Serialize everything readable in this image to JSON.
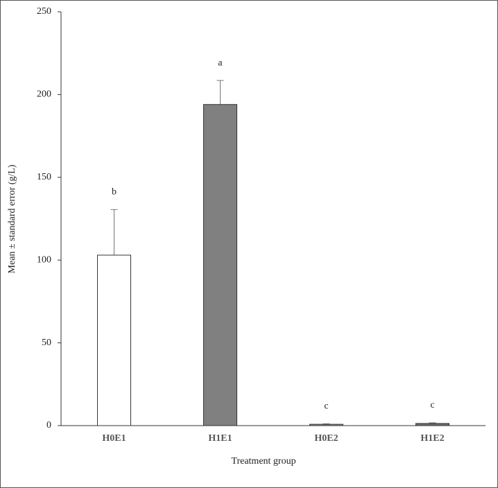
{
  "chart_data": {
    "type": "bar",
    "xlabel": "Treatment group",
    "ylabel": "Mean ± standard error (g/L)",
    "categories": [
      "H0E1",
      "H1E1",
      "H0E2",
      "H1E2"
    ],
    "values": [
      103,
      194,
      0.8,
      1.3
    ],
    "errors": [
      27.5,
      14.5,
      0.3,
      0.4
    ],
    "annotations": [
      "b",
      "a",
      "c",
      "c"
    ],
    "colors": [
      "#ffffff",
      "#808080",
      "#8c8c8c",
      "#6e6e6e"
    ],
    "ylim": [
      0,
      250
    ],
    "yticks": [
      0,
      50,
      100,
      150,
      200,
      250
    ],
    "grid": false
  }
}
